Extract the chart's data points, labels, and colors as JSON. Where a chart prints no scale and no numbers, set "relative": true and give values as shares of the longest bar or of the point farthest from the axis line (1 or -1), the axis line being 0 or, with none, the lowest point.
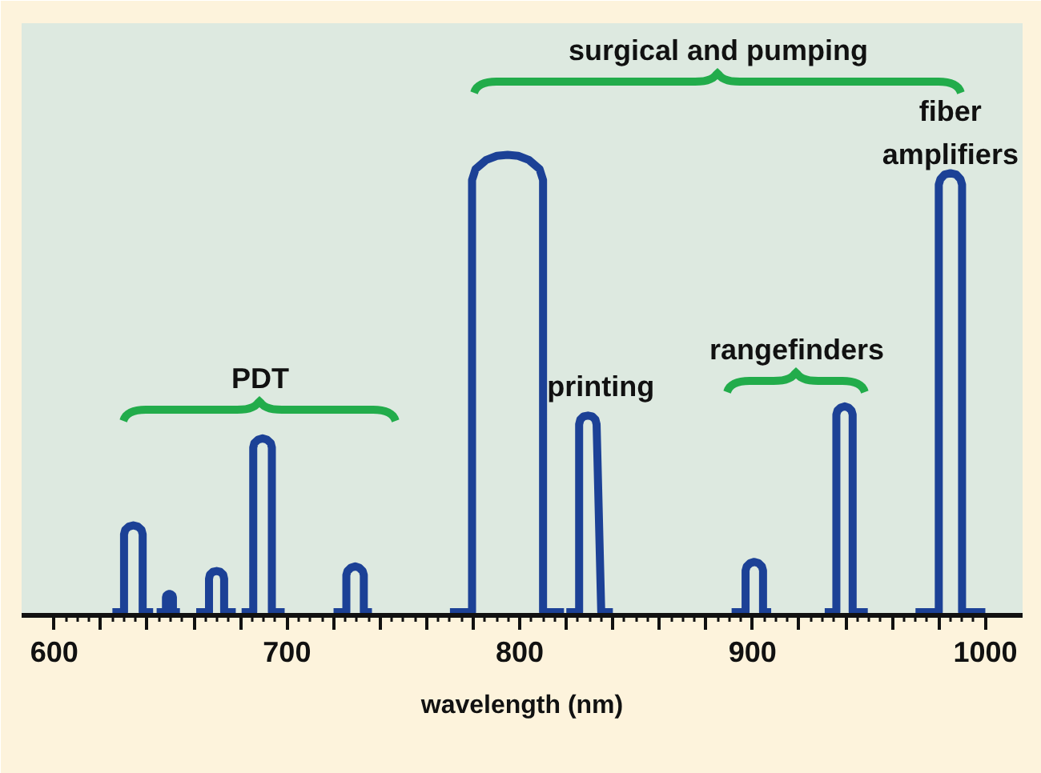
{
  "chart_data": {
    "type": "line",
    "relative": true,
    "xlabel": "wavelength (nm)",
    "line_style": "solid",
    "xlim": [
      586,
      1016
    ],
    "xticks": [
      600,
      {
        "value": 620,
        "label": null
      },
      {
        "value": 640,
        "label": null
      },
      {
        "value": 660,
        "label": null
      },
      {
        "value": 680,
        "label": null
      },
      700,
      {
        "value": 720,
        "label": null
      },
      {
        "value": 740,
        "label": null
      },
      {
        "value": 760,
        "label": null
      },
      {
        "value": 780,
        "label": null
      },
      800,
      {
        "value": 820,
        "label": null
      },
      {
        "value": 840,
        "label": null
      },
      {
        "value": 860,
        "label": null
      },
      {
        "value": 880,
        "label": null
      },
      900,
      {
        "value": 920,
        "label": null
      },
      {
        "value": 940,
        "label": null
      },
      {
        "value": 960,
        "label": null
      },
      {
        "value": 980,
        "label": null
      },
      1000
    ],
    "x": [
      625,
      630,
      630,
      630.5,
      632,
      634,
      636,
      637.5,
      638,
      638,
      642.5,
      643.2,
      644,
      648,
      648,
      648.2,
      648.8,
      649.5,
      650.2,
      650.8,
      651,
      651,
      654,
      657.5,
      661,
      666.5,
      666.5,
      666.9,
      668.1,
      669.8,
      671.4,
      672.6,
      673,
      673,
      678,
      679.2,
      680.5,
      685.5,
      685.5,
      686,
      687.5,
      689.5,
      691.5,
      693,
      693.5,
      693.5,
      699,
      709,
      720,
      725.5,
      725.5,
      726,
      727.4,
      729.3,
      731.1,
      732.5,
      733,
      733,
      736.5,
      753,
      770,
      779.5,
      779.5,
      781,
      785.6,
      790.2,
      794.8,
      799.3,
      803.9,
      808.5,
      810,
      810,
      819,
      819.5,
      820,
      825.5,
      825.5,
      826,
      827.4,
      829.3,
      831.1,
      832.5,
      833,
      835,
      840,
      865,
      891,
      897,
      897,
      897.5,
      898.9,
      900.8,
      902.6,
      904,
      904.5,
      904.5,
      908,
      919.5,
      931,
      936,
      936,
      936.5,
      937.8,
      939.5,
      941.3,
      942.5,
      943,
      943,
      949.5,
      960,
      970,
      980,
      980,
      980.7,
      982.5,
      985,
      987.5,
      989.3,
      990,
      990,
      1000
    ],
    "series": [
      {
        "color": "#1c4196",
        "values": [
          0,
          0,
          0.17,
          0.18,
          0.187,
          0.19,
          0.187,
          0.18,
          0.17,
          0,
          0,
          null,
          0,
          0,
          0.032,
          0.036,
          0.039,
          0.04,
          0.039,
          0.036,
          0.032,
          0,
          0,
          null,
          0,
          0,
          0.073,
          0.082,
          0.088,
          0.09,
          0.088,
          0.082,
          0.073,
          0,
          0,
          null,
          0,
          0,
          0.36,
          0.37,
          0.377,
          0.38,
          0.377,
          0.37,
          0.36,
          0,
          0,
          null,
          0,
          0,
          0.081,
          0.09,
          0.097,
          0.1,
          0.097,
          0.09,
          0.081,
          0,
          0,
          null,
          0,
          0,
          0.945,
          0.969,
          0.989,
          0.998,
          1,
          0.998,
          0.989,
          0.969,
          0.945,
          0,
          0,
          null,
          0,
          0,
          0.411,
          0.421,
          0.428,
          0.43,
          0.428,
          0.421,
          0.411,
          0,
          0,
          null,
          0,
          0,
          0.091,
          0.1,
          0.107,
          0.11,
          0.107,
          0.1,
          0.091,
          0,
          0,
          null,
          0,
          0,
          0.432,
          0.441,
          0.447,
          0.45,
          0.447,
          0.441,
          0.432,
          0,
          0,
          null,
          0,
          0,
          0.935,
          0.947,
          0.957,
          0.96,
          0.957,
          0.947,
          0.935,
          0,
          0
        ]
      }
    ],
    "annotations": [
      "surgical and pumping",
      {
        "text": "fiber\namplifiers",
        "x": 985,
        "y": 0.96
      },
      {
        "text": "printing",
        "x": 829.3,
        "y": 0.43
      },
      "rangefinders",
      "PDT"
    ]
  }
}
